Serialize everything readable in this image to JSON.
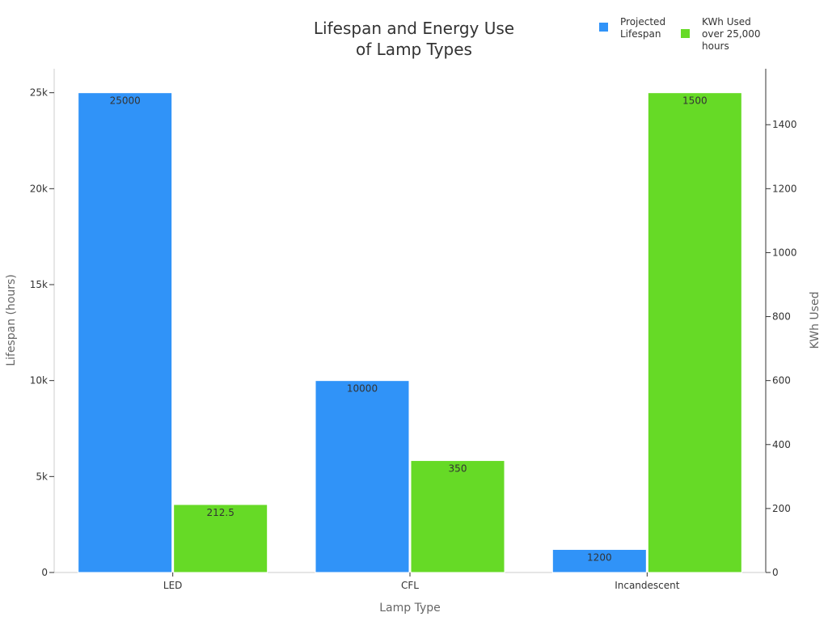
{
  "chart_data": {
    "type": "bar",
    "title": [
      "Lifespan and Energy Use",
      "of Lamp Types"
    ],
    "xlabel": "Lamp Type",
    "ylabel": "Lifespan (hours)",
    "y2label": "KWh Used",
    "categories": [
      "LED",
      "CFL",
      "Incandescent"
    ],
    "series": [
      {
        "name": [
          "Projected",
          "Lifespan"
        ],
        "axis": "left",
        "color": "#3093F8",
        "values": [
          25000,
          10000,
          1200
        ],
        "labels": [
          "25000",
          "10000",
          "1200"
        ]
      },
      {
        "name": [
          "KWh Used",
          "over 25,000",
          "hours"
        ],
        "axis": "right",
        "color": "#66DA26",
        "values": [
          212.5,
          350,
          1500
        ],
        "labels": [
          "212.5",
          "350",
          "1500"
        ]
      }
    ],
    "ylim": [
      0,
      26250
    ],
    "y2lim": [
      0,
      1575
    ],
    "yticks": [
      0,
      5000,
      10000,
      15000,
      20000,
      25000
    ],
    "yticklabels": [
      "0",
      "5k",
      "10k",
      "15k",
      "20k",
      "25k"
    ],
    "y2ticks": [
      0,
      200,
      400,
      600,
      800,
      1000,
      1200,
      1400
    ],
    "y2ticklabels": [
      "0",
      "200",
      "400",
      "600",
      "800",
      "1000",
      "1200",
      "1400"
    ],
    "grid": false,
    "legend": "top-right"
  }
}
